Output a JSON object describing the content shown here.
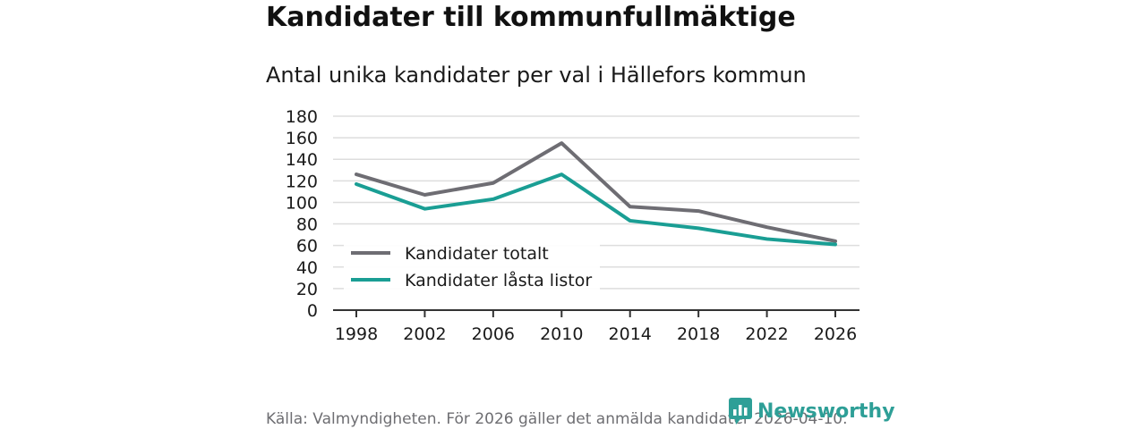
{
  "title": "Kandidater till kommunfullmäktige",
  "subtitle": "Antal unika kandidater per val i Hällefors kommun",
  "source": "Källa: Valmyndigheten. För 2026 gäller det anmälda kandidater 2026-04-10.",
  "brand": {
    "name": "Newsworthy",
    "color": "#2e9f97",
    "icon": "newsworthy-chart-icon"
  },
  "chart_data": {
    "type": "line",
    "categories": [
      "1998",
      "2002",
      "2006",
      "2010",
      "2014",
      "2018",
      "2022",
      "2026"
    ],
    "series": [
      {
        "name": "Kandidater totalt",
        "color": "#6e6d73",
        "values": [
          126,
          107,
          118,
          155,
          96,
          92,
          77,
          64
        ]
      },
      {
        "name": "Kandidater låsta listor",
        "color": "#1a9e94",
        "values": [
          117,
          94,
          103,
          126,
          83,
          76,
          66,
          61
        ]
      }
    ],
    "ylim": [
      0,
      180
    ],
    "yticks": [
      0,
      20,
      40,
      60,
      80,
      100,
      120,
      140,
      160,
      180
    ],
    "grid": true,
    "legend": "bottom-left",
    "xlabel": "",
    "ylabel": ""
  }
}
